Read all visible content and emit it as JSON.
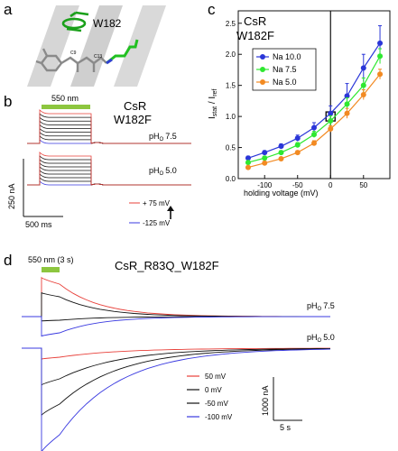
{
  "panel_a": {
    "letter": "a",
    "residue_label": "W182",
    "atom_c9": "C9",
    "atom_c13": "C13"
  },
  "panel_b": {
    "letter": "b",
    "light_label": "550 nm",
    "title_line1": "CsR",
    "title_line2": "W182F",
    "ph_top_main": "pH",
    "ph_top_sub": "O",
    "ph_top_value": "7.5",
    "ph_bottom_main": "pH",
    "ph_bottom_sub": "O",
    "ph_bottom_value": "5.0",
    "scale_current": "250 nA",
    "scale_time": "500 ms",
    "legend_pos": "+ 75 mV",
    "legend_neg": "-125 mV"
  },
  "panel_d": {
    "letter": "d",
    "light_label": "550 nm (3 s)",
    "title": "CsR_R83Q_W182F",
    "ph_top_main": "pH",
    "ph_top_sub": "O",
    "ph_top_value": "7.5",
    "ph_bottom_main": "pH",
    "ph_bottom_sub": "O",
    "ph_bottom_value": "5.0",
    "scale_current": "1000 nA",
    "scale_time": "5 s",
    "legend": [
      {
        "label": "50 mV",
        "color": "#e8403a"
      },
      {
        "label": "0 mV",
        "color": "#111111"
      },
      {
        "label": "-50 mV",
        "color": "#111111"
      },
      {
        "label": "-100 mV",
        "color": "#3a3ae0"
      }
    ]
  },
  "chart_data": {
    "type": "line",
    "panel_letter": "c",
    "title_line1": "CsR",
    "title_line2": "W182F",
    "xlabel": "holding voltage (mV)",
    "ylabel_main": "I",
    "ylabel_sub1": "stat",
    "ylabel_sep": " / ",
    "ylabel_sub2": "ref",
    "xlim": [
      -140,
      90
    ],
    "ylim": [
      0,
      2.7
    ],
    "x_ticks": [
      -100,
      -50,
      0,
      50
    ],
    "y_ticks": [
      0.0,
      0.5,
      1.0,
      1.5,
      2.0,
      2.5
    ],
    "x_tick_labels": [
      "-100",
      "-50",
      "0",
      "50"
    ],
    "y_tick_labels": [
      "0.0",
      "0.5",
      "1.0",
      "1.5",
      "2.0",
      "2.5"
    ],
    "legend_position": "top-left",
    "x": [
      -125,
      -100,
      -75,
      -50,
      -25,
      0,
      25,
      50,
      75
    ],
    "series": [
      {
        "name": "Na 10.0",
        "color": "#2a36d8",
        "values": [
          0.33,
          0.42,
          0.52,
          0.65,
          0.82,
          1.05,
          1.33,
          1.78,
          2.18
        ],
        "errors": [
          0.03,
          0.03,
          0.04,
          0.05,
          0.08,
          0.12,
          0.2,
          0.22,
          0.28
        ]
      },
      {
        "name": "Na 7.5",
        "color": "#2ee830",
        "values": [
          0.26,
          0.33,
          0.42,
          0.54,
          0.71,
          0.93,
          1.2,
          1.5,
          1.97
        ],
        "errors": [
          0.02,
          0.03,
          0.03,
          0.04,
          0.05,
          0.08,
          0.1,
          0.12,
          0.12
        ]
      },
      {
        "name": "Na 5.0",
        "color": "#f28a22",
        "values": [
          0.18,
          0.25,
          0.32,
          0.42,
          0.57,
          0.8,
          1.05,
          1.35,
          1.68
        ],
        "errors": [
          0.02,
          0.02,
          0.02,
          0.03,
          0.04,
          0.05,
          0.08,
          0.08,
          0.08
        ]
      }
    ]
  }
}
